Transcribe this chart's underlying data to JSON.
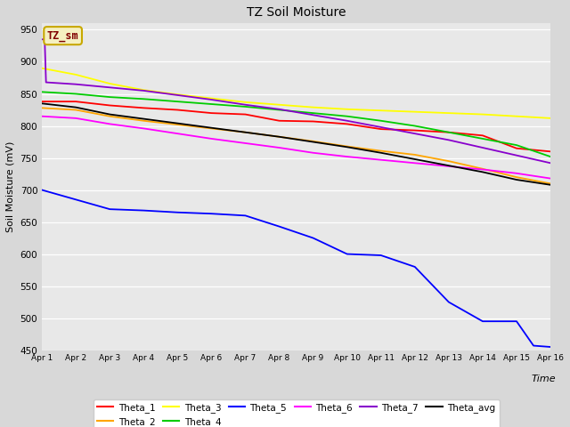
{
  "title": "TZ Soil Moisture",
  "xlabel": "Time",
  "ylabel": "Soil Moisture (mV)",
  "ylim": [
    450,
    960
  ],
  "xlim": [
    0,
    15
  ],
  "xtick_labels": [
    "Apr 1",
    "Apr 2",
    "Apr 3",
    "Apr 4",
    "Apr 5",
    "Apr 6",
    "Apr 7",
    "Apr 8",
    "Apr 9",
    "Apr 10",
    "Apr 11",
    "Apr 12",
    "Apr 13",
    "Apr 14",
    "Apr 15",
    "Apr 16"
  ],
  "ytick_values": [
    450,
    500,
    550,
    600,
    650,
    700,
    750,
    800,
    850,
    900,
    950
  ],
  "fig_bg_color": "#d8d8d8",
  "plot_bg_color": "#e8e8e8",
  "legend_box_color": "#f5f0c0",
  "legend_box_edge_color": "#c8a800",
  "legend_text_color": "#800000",
  "series": {
    "Theta_1": {
      "color": "#ff0000",
      "x": [
        0,
        1,
        2,
        3,
        4,
        5,
        6,
        7,
        8,
        9,
        10,
        11,
        12,
        13,
        14,
        15
      ],
      "y": [
        838,
        838,
        832,
        828,
        825,
        820,
        818,
        808,
        807,
        803,
        795,
        793,
        790,
        785,
        765,
        760
      ]
    },
    "Theta_2": {
      "color": "#ffa500",
      "x": [
        0,
        1,
        2,
        3,
        4,
        5,
        6,
        7,
        8,
        9,
        10,
        11,
        12,
        13,
        14,
        15
      ],
      "y": [
        828,
        825,
        815,
        808,
        802,
        796,
        790,
        783,
        776,
        768,
        761,
        755,
        745,
        733,
        720,
        710
      ]
    },
    "Theta_3": {
      "color": "#ffff00",
      "x": [
        0,
        1,
        2,
        3,
        4,
        5,
        6,
        7,
        8,
        9,
        10,
        11,
        12,
        13,
        14,
        15
      ],
      "y": [
        890,
        880,
        866,
        856,
        849,
        843,
        837,
        833,
        829,
        826,
        824,
        822,
        820,
        818,
        815,
        812
      ]
    },
    "Theta_4": {
      "color": "#00cc00",
      "x": [
        0,
        1,
        2,
        3,
        4,
        5,
        6,
        7,
        8,
        9,
        10,
        11,
        12,
        13,
        14,
        15
      ],
      "y": [
        853,
        850,
        845,
        842,
        838,
        834,
        830,
        825,
        820,
        815,
        808,
        800,
        790,
        780,
        770,
        752
      ]
    },
    "Theta_5": {
      "color": "#0000ff",
      "x": [
        0,
        1,
        2,
        3,
        4,
        5,
        6,
        7,
        8,
        9,
        10,
        11,
        12,
        13,
        14,
        14.5,
        15
      ],
      "y": [
        700,
        685,
        670,
        668,
        665,
        663,
        660,
        643,
        625,
        600,
        598,
        580,
        525,
        495,
        495,
        457,
        455
      ]
    },
    "Theta_6": {
      "color": "#ff00ff",
      "x": [
        0,
        1,
        2,
        3,
        4,
        5,
        6,
        7,
        8,
        9,
        10,
        11,
        12,
        13,
        14,
        15
      ],
      "y": [
        815,
        812,
        803,
        796,
        788,
        780,
        773,
        766,
        758,
        752,
        747,
        742,
        737,
        732,
        726,
        718
      ]
    },
    "Theta_7": {
      "color": "#8800cc",
      "x": [
        0,
        0.08,
        0.12,
        1,
        2,
        3,
        4,
        5,
        6,
        7,
        8,
        9,
        10,
        11,
        12,
        13,
        14,
        15
      ],
      "y": [
        935,
        935,
        868,
        865,
        860,
        855,
        848,
        841,
        833,
        826,
        817,
        808,
        798,
        788,
        778,
        766,
        754,
        742
      ]
    },
    "Theta_avg": {
      "color": "#000000",
      "x": [
        0,
        1,
        2,
        3,
        4,
        5,
        6,
        7,
        8,
        9,
        10,
        11,
        12,
        13,
        14,
        15
      ],
      "y": [
        835,
        829,
        818,
        811,
        804,
        797,
        790,
        783,
        775,
        767,
        758,
        748,
        738,
        728,
        716,
        708
      ]
    }
  }
}
